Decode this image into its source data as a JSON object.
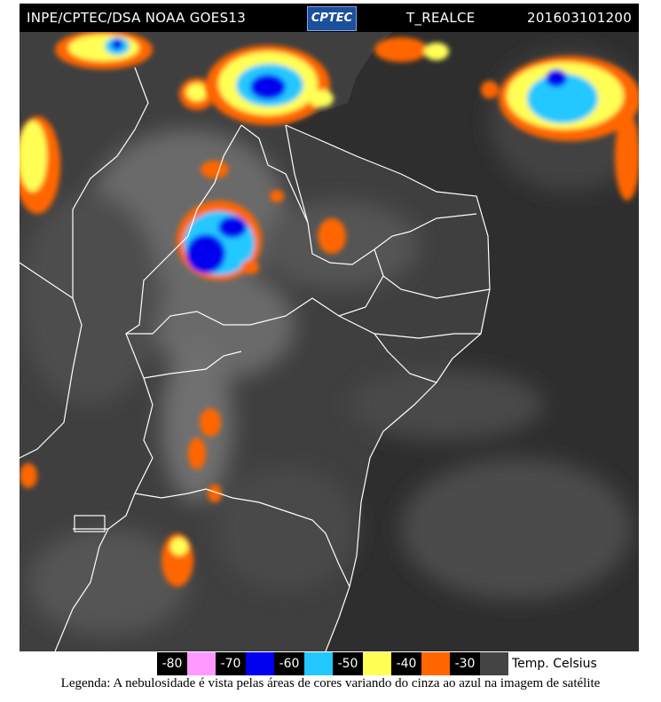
{
  "header": {
    "source": "INPE/CPTEC/DSA NOAA GOES13",
    "logo": "CPTEC",
    "product": "T_REALCE",
    "timestamp": "201603101200"
  },
  "legend": {
    "entries": [
      {
        "value": "-80",
        "color": "#ff99ff"
      },
      {
        "value": "-70",
        "color": "#0000ee"
      },
      {
        "value": "-60",
        "color": "#22c8ff"
      },
      {
        "value": "-50",
        "color": "#ffff55"
      },
      {
        "value": "-40",
        "color": "#ff6600"
      },
      {
        "value": "-30",
        "color": "#444444"
      }
    ],
    "units": "Temp. Celsius"
  },
  "caption": "Legenda: A nebulosidade é vista pelas áreas de cores variando do cinza ao azul na imagem de satélite",
  "colors": {
    "land": "#3c3c3c",
    "ocean": "#2e2e2e",
    "cloud_gray": "#8a8a8a",
    "borders": "#ffffff"
  }
}
